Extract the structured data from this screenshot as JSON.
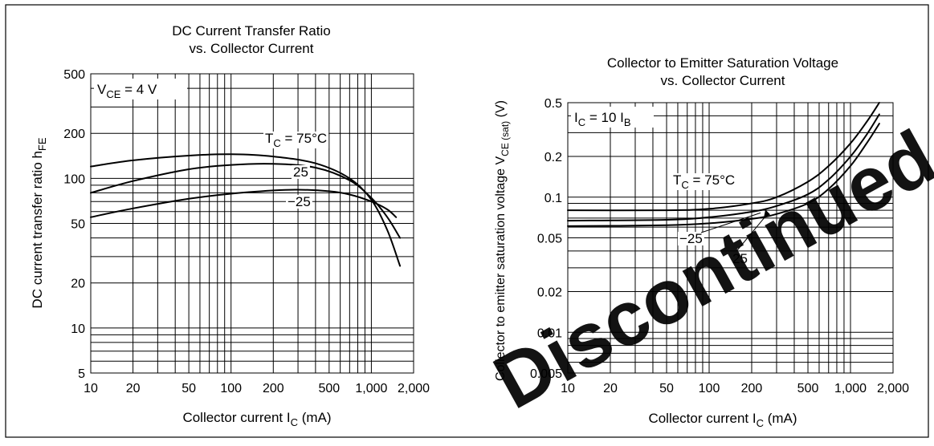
{
  "watermark": {
    "text": "Discontinued product",
    "color": "#e5281b"
  },
  "chart_data": [
    {
      "type": "line",
      "title": [
        "DC Current Transfer Ratio",
        "vs. Collector Current"
      ],
      "xlabel": {
        "main": "Collector current  I",
        "sub": "C",
        "unit": "  (mA)"
      },
      "ylabel": {
        "main": "DC current transfer ratio  h",
        "sub": "FE"
      },
      "xscale": "log",
      "yscale": "log",
      "xlim": [
        10,
        2000
      ],
      "ylim": [
        5,
        500
      ],
      "x_ticks": [
        10,
        20,
        50,
        100,
        200,
        500,
        1000,
        2000
      ],
      "x_tick_labels": [
        "10",
        "20",
        "50",
        "100",
        "200",
        "500",
        "1,000",
        "2,000"
      ],
      "y_ticks": [
        5,
        10,
        20,
        50,
        100,
        200,
        500
      ],
      "y_tick_labels": [
        "5",
        "10",
        "20",
        "50",
        "100",
        "200",
        "500"
      ],
      "grid": true,
      "condition": {
        "main": "V",
        "sub": "CE",
        "rest": " = 4 V"
      },
      "series": [
        {
          "name": "T_C = 75°C",
          "x": [
            10,
            20,
            50,
            100,
            200,
            400,
            700,
            1000,
            1300,
            1600
          ],
          "y": [
            120,
            132,
            142,
            145,
            140,
            126,
            100,
            72,
            45,
            26
          ]
        },
        {
          "name": "25",
          "x": [
            10,
            20,
            50,
            100,
            200,
            400,
            700,
            1000,
            1300,
            1600
          ],
          "y": [
            80,
            96,
            115,
            123,
            125,
            118,
            97,
            74,
            55,
            40
          ]
        },
        {
          "name": "−25",
          "x": [
            10,
            20,
            50,
            100,
            200,
            300,
            500,
            700,
            1000,
            1300,
            1500
          ],
          "y": [
            55,
            63,
            73,
            79,
            83,
            84,
            82,
            78,
            70,
            62,
            55
          ]
        }
      ],
      "annotations": [
        {
          "parts": [
            {
              "t": "T"
            },
            {
              "t": "C",
              "sub": true
            },
            {
              "t": " = 75°C"
            }
          ]
        },
        {
          "parts": [
            {
              "t": "25"
            }
          ]
        },
        {
          "parts": [
            {
              "t": "−25"
            }
          ]
        }
      ]
    },
    {
      "type": "line",
      "title": [
        "Collector to Emitter Saturation Voltage",
        "vs. Collector Current"
      ],
      "xlabel": {
        "main": "Collector current  I",
        "sub": "C",
        "unit": "  (mA)"
      },
      "ylabel": {
        "main": "Collector to emitter saturation voltage  V",
        "sub": "CE (sat)",
        "unit": "  (V)"
      },
      "xscale": "log",
      "yscale": "log",
      "xlim": [
        10,
        2000
      ],
      "ylim": [
        0.005,
        0.5
      ],
      "x_ticks": [
        10,
        20,
        50,
        100,
        200,
        500,
        1000,
        2000
      ],
      "x_tick_labels": [
        "10",
        "20",
        "50",
        "100",
        "200",
        "500",
        "1,000",
        "2,000"
      ],
      "y_ticks": [
        0.005,
        0.01,
        0.02,
        0.05,
        0.1,
        0.2,
        0.5
      ],
      "y_tick_labels": [
        "0.005",
        "0.01",
        "0.02",
        "0.05",
        "0.1",
        "0.2",
        "0.5"
      ],
      "grid": true,
      "condition": {
        "main": "I",
        "sub": "C",
        "rest": " = 10 I",
        "sub2": "B"
      },
      "series": [
        {
          "name": "T_C = 75°C",
          "x": [
            10,
            50,
            100,
            200,
            300,
            500,
            700,
            1000,
            1300,
            1600
          ],
          "y": [
            0.08,
            0.08,
            0.082,
            0.09,
            0.1,
            0.13,
            0.17,
            0.25,
            0.36,
            0.5
          ]
        },
        {
          "name": "25",
          "x": [
            10,
            50,
            100,
            200,
            300,
            500,
            700,
            1000,
            1300,
            1600
          ],
          "y": [
            0.067,
            0.068,
            0.071,
            0.078,
            0.086,
            0.105,
            0.135,
            0.2,
            0.29,
            0.41
          ]
        },
        {
          "name": "−25",
          "x": [
            10,
            50,
            100,
            200,
            300,
            500,
            700,
            1000,
            1300,
            1600
          ],
          "y": [
            0.061,
            0.062,
            0.064,
            0.069,
            0.075,
            0.09,
            0.115,
            0.17,
            0.25,
            0.35
          ]
        }
      ],
      "annotations": [
        {
          "parts": [
            {
              "t": "T"
            },
            {
              "t": "C",
              "sub": true
            },
            {
              "t": " = 75°C"
            }
          ]
        },
        {
          "parts": [
            {
              "t": "−25"
            }
          ]
        },
        {
          "parts": [
            {
              "t": "25"
            }
          ]
        }
      ]
    }
  ]
}
